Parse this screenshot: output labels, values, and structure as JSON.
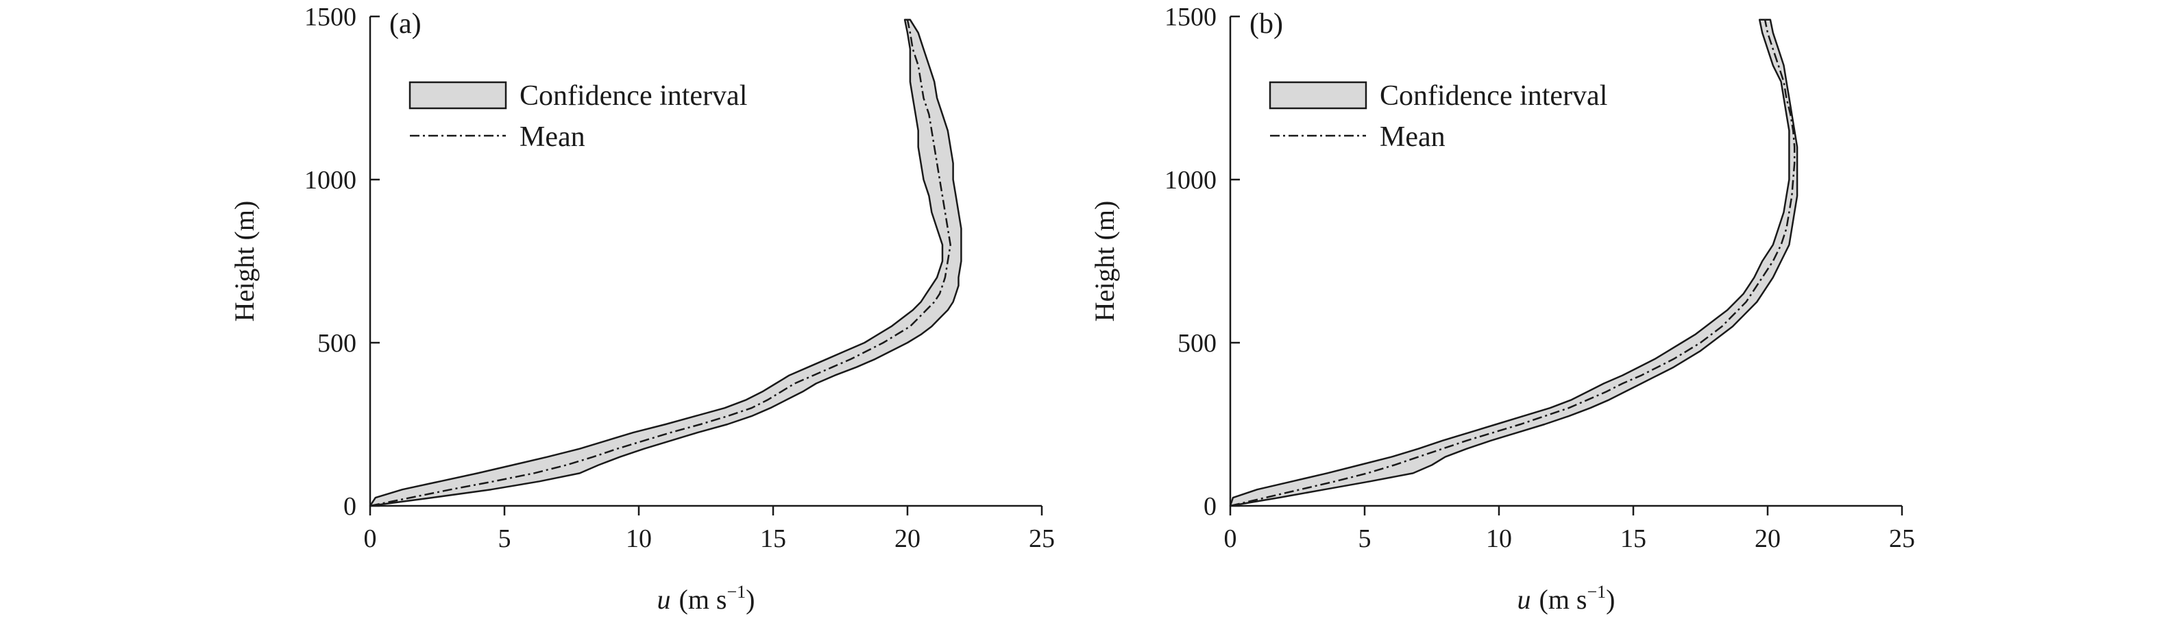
{
  "chart_data": [
    {
      "type": "area",
      "panel_label": "(a)",
      "xlabel_var": "u",
      "xlabel_unit": "(m s",
      "xlabel_sup": "−1",
      "xlabel_close": ")",
      "ylabel": "Height (m)",
      "xlim": [
        0,
        25
      ],
      "ylim": [
        0,
        1500
      ],
      "xticks": [
        "0",
        "5",
        "10",
        "15",
        "20",
        "25"
      ],
      "yticks": [
        "0",
        "500",
        "1000",
        "1500"
      ],
      "legend_placement": "top-left",
      "grid": false,
      "colors": {
        "band_fill": "#d9d9d9",
        "line": "#1a1a1a"
      },
      "series": [
        {
          "name": "Mean",
          "style": "dash-dot",
          "height": [
            0,
            25,
            50,
            75,
            100,
            125,
            150,
            175,
            200,
            225,
            250,
            275,
            300,
            325,
            350,
            375,
            400,
            425,
            450,
            475,
            500,
            525,
            550,
            575,
            600,
            625,
            650,
            675,
            700,
            750,
            800,
            850,
            900,
            950,
            1000,
            1050,
            1100,
            1150,
            1200,
            1250,
            1300,
            1350,
            1400,
            1450,
            1490
          ],
          "u": [
            0,
            1.5,
            3.0,
            4.6,
            6.1,
            7.3,
            8.3,
            9.2,
            10.2,
            11.2,
            12.3,
            13.3,
            14.2,
            14.8,
            15.3,
            15.8,
            16.5,
            17.2,
            17.9,
            18.5,
            19.1,
            19.6,
            20.1,
            20.4,
            20.7,
            21.0,
            21.2,
            21.3,
            21.4,
            21.5,
            21.6,
            21.5,
            21.4,
            21.3,
            21.2,
            21.1,
            21.0,
            20.9,
            20.8,
            20.6,
            20.5,
            20.4,
            20.2,
            20.1,
            20.0
          ]
        },
        {
          "name": "Confidence interval",
          "style": "band",
          "height": [
            0,
            25,
            50,
            75,
            100,
            125,
            150,
            175,
            200,
            225,
            250,
            275,
            300,
            325,
            350,
            375,
            400,
            425,
            450,
            475,
            500,
            525,
            550,
            575,
            600,
            625,
            650,
            675,
            700,
            750,
            800,
            850,
            900,
            950,
            1000,
            1050,
            1100,
            1150,
            1200,
            1250,
            1300,
            1350,
            1400,
            1450,
            1490
          ],
          "lower": [
            0,
            0.2,
            1.2,
            2.6,
            4.0,
            5.3,
            6.6,
            7.8,
            8.8,
            9.8,
            11.0,
            12.1,
            13.2,
            14.0,
            14.6,
            15.1,
            15.6,
            16.3,
            17.0,
            17.7,
            18.4,
            18.9,
            19.4,
            19.8,
            20.2,
            20.5,
            20.7,
            20.9,
            21.1,
            21.3,
            21.3,
            21.1,
            20.9,
            20.8,
            20.6,
            20.5,
            20.4,
            20.4,
            20.3,
            20.2,
            20.1,
            20.1,
            20.1,
            20.0,
            19.9
          ],
          "upper": [
            0,
            2.3,
            4.5,
            6.3,
            7.8,
            8.5,
            9.3,
            10.2,
            11.2,
            12.2,
            13.3,
            14.2,
            14.9,
            15.5,
            16.1,
            16.6,
            17.3,
            18.1,
            18.8,
            19.4,
            20.0,
            20.5,
            20.9,
            21.2,
            21.5,
            21.7,
            21.8,
            21.9,
            21.9,
            22.0,
            22.0,
            22.0,
            21.9,
            21.8,
            21.7,
            21.7,
            21.6,
            21.5,
            21.3,
            21.1,
            21.0,
            20.8,
            20.6,
            20.4,
            20.1
          ]
        }
      ]
    },
    {
      "type": "area",
      "panel_label": "(b)",
      "xlabel_var": "u",
      "xlabel_unit": "(m s",
      "xlabel_sup": "−1",
      "xlabel_close": ")",
      "ylabel": "Height (m)",
      "xlim": [
        0,
        25
      ],
      "ylim": [
        0,
        1500
      ],
      "xticks": [
        "0",
        "5",
        "10",
        "15",
        "20",
        "25"
      ],
      "yticks": [
        "0",
        "500",
        "1000",
        "1500"
      ],
      "legend_placement": "top-left",
      "grid": false,
      "colors": {
        "band_fill": "#d9d9d9",
        "line": "#1a1a1a"
      },
      "series": [
        {
          "name": "Mean",
          "style": "dash-dot",
          "height": [
            0,
            25,
            50,
            75,
            100,
            125,
            150,
            175,
            200,
            225,
            250,
            275,
            300,
            325,
            350,
            375,
            400,
            425,
            450,
            475,
            500,
            525,
            550,
            575,
            600,
            625,
            650,
            675,
            700,
            750,
            800,
            850,
            900,
            950,
            1000,
            1050,
            1100,
            1150,
            1200,
            1250,
            1300,
            1350,
            1400,
            1450,
            1490
          ],
          "u": [
            0,
            1.3,
            2.6,
            3.9,
            5.1,
            6.1,
            7.0,
            7.9,
            8.8,
            9.8,
            10.8,
            11.7,
            12.6,
            13.3,
            14.0,
            14.6,
            15.3,
            15.9,
            16.5,
            17.0,
            17.5,
            17.9,
            18.3,
            18.6,
            18.9,
            19.2,
            19.4,
            19.6,
            19.8,
            20.2,
            20.5,
            20.7,
            20.8,
            20.9,
            20.95,
            21.0,
            21.0,
            20.95,
            20.85,
            20.7,
            20.6,
            20.4,
            20.2,
            20.0,
            19.9
          ]
        },
        {
          "name": "Confidence interval",
          "style": "band",
          "height": [
            0,
            25,
            50,
            75,
            100,
            125,
            150,
            175,
            200,
            225,
            250,
            275,
            300,
            325,
            350,
            375,
            400,
            425,
            450,
            475,
            500,
            525,
            550,
            575,
            600,
            625,
            650,
            675,
            700,
            750,
            800,
            850,
            900,
            950,
            1000,
            1050,
            1100,
            1150,
            1200,
            1250,
            1300,
            1350,
            1400,
            1450,
            1490
          ],
          "lower": [
            0,
            0.1,
            1.0,
            2.3,
            3.6,
            4.8,
            6.0,
            7.0,
            7.9,
            8.9,
            9.9,
            10.9,
            11.9,
            12.7,
            13.3,
            13.9,
            14.6,
            15.2,
            15.8,
            16.3,
            16.8,
            17.3,
            17.7,
            18.1,
            18.5,
            18.8,
            19.1,
            19.3,
            19.5,
            19.8,
            20.2,
            20.4,
            20.6,
            20.7,
            20.8,
            20.8,
            20.8,
            20.8,
            20.7,
            20.6,
            20.5,
            20.2,
            20.0,
            19.8,
            19.7
          ],
          "upper": [
            0,
            1.8,
            3.5,
            5.2,
            6.8,
            7.5,
            8.0,
            8.8,
            9.7,
            10.7,
            11.7,
            12.6,
            13.4,
            14.1,
            14.7,
            15.3,
            15.9,
            16.5,
            17.0,
            17.5,
            17.9,
            18.3,
            18.7,
            19.0,
            19.3,
            19.6,
            19.8,
            20.0,
            20.2,
            20.5,
            20.8,
            20.9,
            21.0,
            21.1,
            21.1,
            21.1,
            21.1,
            21.0,
            20.9,
            20.8,
            20.7,
            20.6,
            20.4,
            20.2,
            20.1
          ]
        }
      ]
    }
  ]
}
